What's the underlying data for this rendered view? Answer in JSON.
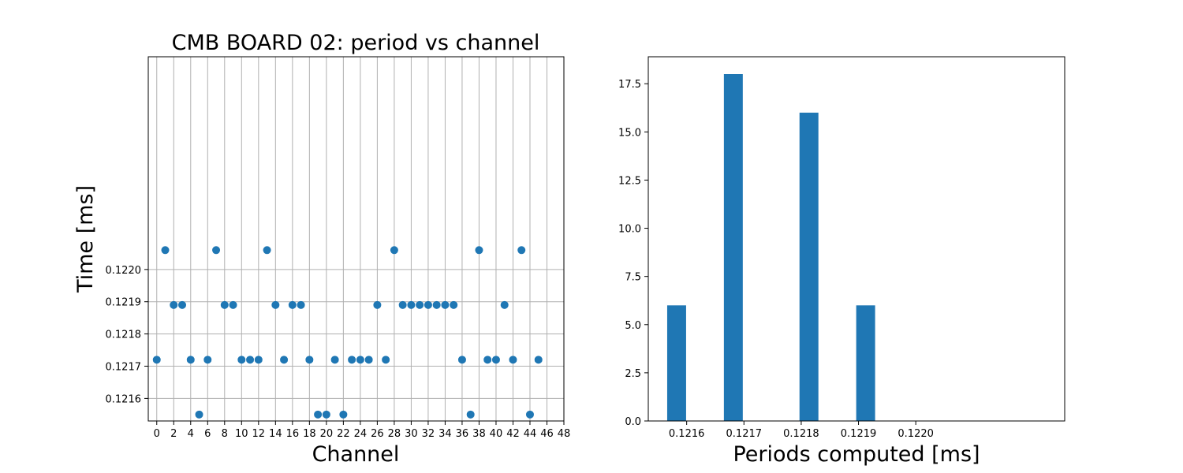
{
  "chart_data": [
    {
      "type": "scatter",
      "title": "CMB BOARD 02: period vs channel",
      "xlabel": "Channel",
      "ylabel": "Time [ms]",
      "xlim": [
        -1,
        48
      ],
      "ylim": [
        0.12153,
        0.12266
      ],
      "xticks": [
        0,
        2,
        4,
        6,
        8,
        10,
        12,
        14,
        16,
        18,
        20,
        22,
        24,
        26,
        28,
        30,
        32,
        34,
        36,
        38,
        40,
        42,
        44,
        46,
        48
      ],
      "xtick_labels": [
        "0",
        "2",
        "4",
        "6",
        "8",
        "10",
        "12",
        "14",
        "16",
        "18",
        "20",
        "22",
        "24",
        "26",
        "28",
        "30",
        "32",
        "34",
        "36",
        "38",
        "40",
        "42",
        "44",
        "46",
        "48"
      ],
      "yticks": [
        0.1216,
        0.1217,
        0.1218,
        0.1219,
        0.122
      ],
      "ytick_labels": [
        "0.1216",
        "0.1217",
        "0.1218",
        "0.1219",
        "0.1220"
      ],
      "grid": true,
      "marker_color": "#1f77b4",
      "x": [
        0,
        1,
        2,
        3,
        4,
        5,
        6,
        7,
        8,
        9,
        10,
        11,
        12,
        13,
        14,
        15,
        16,
        17,
        18,
        19,
        20,
        21,
        22,
        23,
        24,
        25,
        26,
        27,
        28,
        29,
        30,
        31,
        32,
        33,
        34,
        35,
        36,
        37,
        38,
        39,
        40,
        41,
        42,
        43,
        44,
        45
      ],
      "y": [
        0.12172,
        0.12206,
        0.12189,
        0.12189,
        0.12172,
        0.12155,
        0.12172,
        0.12206,
        0.12189,
        0.12189,
        0.12172,
        0.12172,
        0.12172,
        0.12206,
        0.12189,
        0.12172,
        0.12189,
        0.12189,
        0.12172,
        0.12155,
        0.12155,
        0.12172,
        0.12155,
        0.12172,
        0.12172,
        0.12172,
        0.12189,
        0.12172,
        0.12206,
        0.12189,
        0.12189,
        0.12189,
        0.12189,
        0.12189,
        0.12189,
        0.12189,
        0.12172,
        0.12155,
        0.12206,
        0.12172,
        0.12172,
        0.12189,
        0.12172,
        0.12206,
        0.12155,
        0.12172
      ]
    },
    {
      "type": "bar",
      "title": "",
      "xlabel": "Periods computed [ms]",
      "ylabel": "",
      "xlim": [
        0.121533,
        0.12226
      ],
      "ylim": [
        0,
        18.9
      ],
      "xticks": [
        0.1216,
        0.1217,
        0.1218,
        0.1219,
        0.122
      ],
      "xtick_labels": [
        "0.1216",
        "0.1217",
        "0.1218",
        "0.1219",
        "0.1220"
      ],
      "yticks": [
        0,
        2.5,
        5,
        7.5,
        10,
        12.5,
        15,
        17.5
      ],
      "ytick_labels": [
        "0.0",
        "2.5",
        "5.0",
        "7.5",
        "10.0",
        "12.5",
        "15.0",
        "17.5"
      ],
      "grid": false,
      "bar_color": "#1f77b4",
      "bins": [
        {
          "start": 0.121566,
          "end": 0.121599,
          "count": 6
        },
        {
          "start": 0.121599,
          "end": 0.121632,
          "count": 0
        },
        {
          "start": 0.121632,
          "end": 0.121665,
          "count": 0
        },
        {
          "start": 0.121665,
          "end": 0.121698,
          "count": 18
        },
        {
          "start": 0.121698,
          "end": 0.121731,
          "count": 0
        },
        {
          "start": 0.121731,
          "end": 0.121764,
          "count": 0
        },
        {
          "start": 0.121764,
          "end": 0.121797,
          "count": 0
        },
        {
          "start": 0.121797,
          "end": 0.12183,
          "count": 16
        },
        {
          "start": 0.12183,
          "end": 0.121863,
          "count": 0
        },
        {
          "start": 0.121863,
          "end": 0.121896,
          "count": 0
        },
        {
          "start": 0.121896,
          "end": 0.121929,
          "count": 6
        }
      ]
    }
  ]
}
